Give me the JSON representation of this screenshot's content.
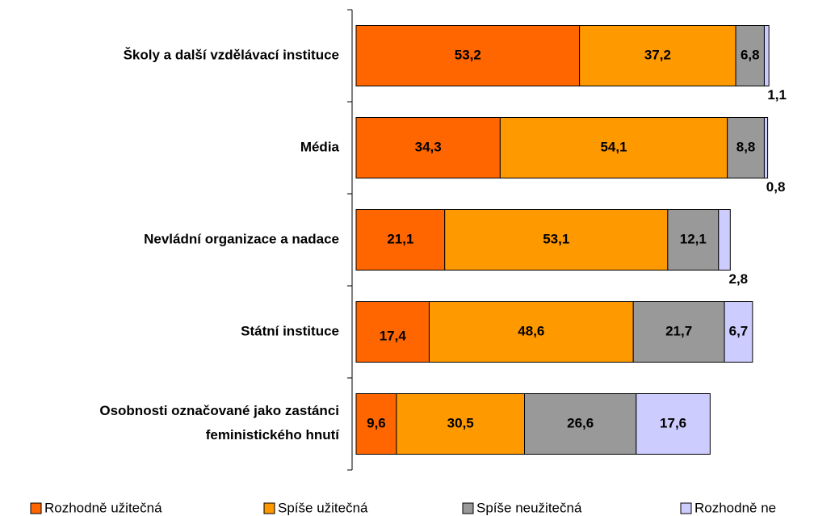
{
  "chart_data": {
    "type": "stacked-barh",
    "categories": [
      "Školy a další vzdělávací instituce",
      "Média",
      "Nevládní organizace a nadace",
      "Státní instituce",
      "Osobnosti označované jako zastánci feministického hnutí"
    ],
    "series": [
      {
        "name": "Rozhodně užitečná",
        "color": "#ff6600",
        "values": [
          53.2,
          34.3,
          21.1,
          17.4,
          9.6
        ],
        "value_labels": [
          "53,2",
          "34,3",
          "21,1",
          "17,4",
          "9,6"
        ]
      },
      {
        "name": "Spíše užitečná",
        "color": "#ff9900",
        "values": [
          37.2,
          54.1,
          53.1,
          48.6,
          30.5
        ],
        "value_labels": [
          "37,2",
          "54,1",
          "53,1",
          "48,6",
          "30,5"
        ]
      },
      {
        "name": "Spíše neužitečná",
        "color": "#999999",
        "values": [
          6.8,
          8.8,
          12.1,
          21.7,
          26.6
        ],
        "value_labels": [
          "6,8",
          "8,8",
          "12,1",
          "21,7",
          "26,6"
        ]
      },
      {
        "name": "Rozhodně ne",
        "color": "#ccccff",
        "values": [
          1.1,
          0.8,
          2.8,
          6.7,
          17.6
        ],
        "value_labels": [
          "1,1",
          "0,8",
          "2,8",
          "6,7",
          "17,6"
        ]
      }
    ],
    "xlim": [
      0,
      100
    ]
  }
}
